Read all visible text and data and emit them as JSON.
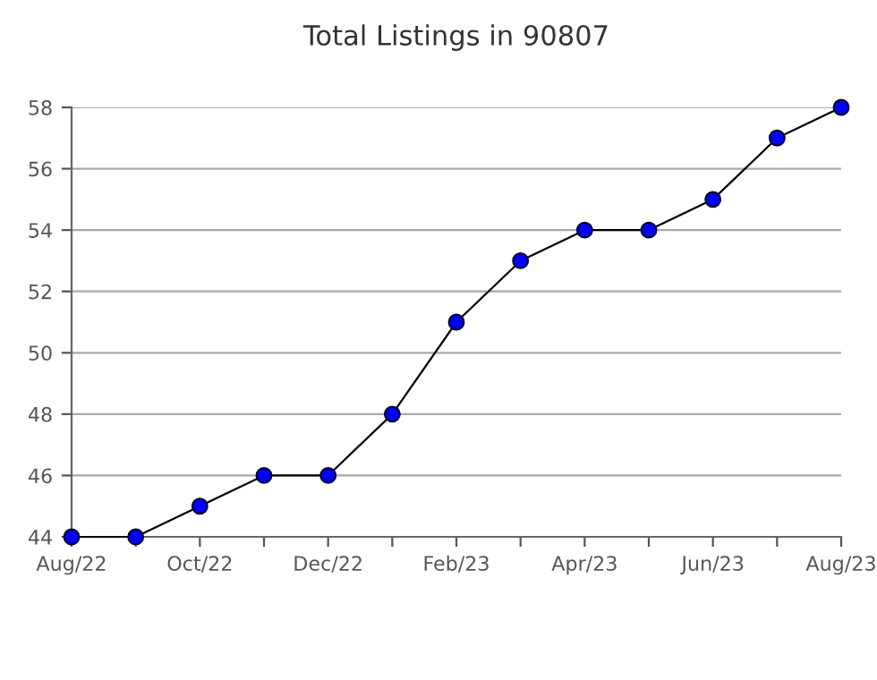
{
  "chart_data": {
    "type": "line",
    "title": "Total Listings in 90807",
    "categories": [
      "Aug/22",
      null,
      "Oct/22",
      null,
      "Dec/22",
      null,
      "Feb/23",
      null,
      "Apr/23",
      null,
      "Jun/23",
      null,
      "Aug/23"
    ],
    "series": [
      {
        "color": "#0000ff",
        "values": [
          44,
          44,
          45,
          46,
          46,
          48,
          51,
          53,
          54,
          54,
          55,
          57,
          58
        ]
      }
    ],
    "ylim": [
      44,
      58
    ],
    "yticks": [
      44,
      46,
      48,
      50,
      52,
      54,
      56,
      58
    ],
    "grid": "y",
    "marker": "circle",
    "line_style": "solid"
  }
}
